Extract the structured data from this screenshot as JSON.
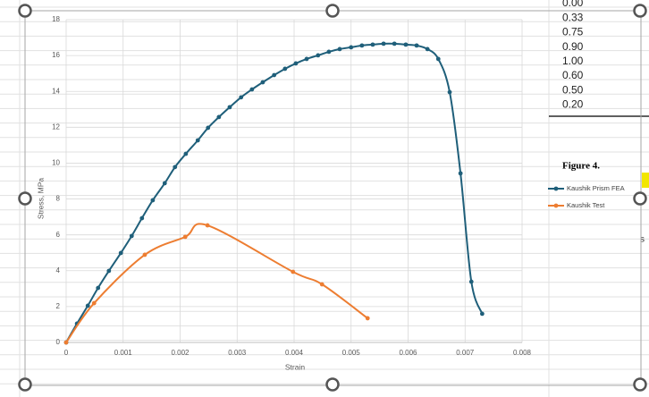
{
  "chart_data": {
    "type": "line",
    "x_label": "Strain",
    "y_label": "Stress, MPa",
    "xlim": [
      0,
      0.008
    ],
    "xticks": [
      0,
      0.001,
      0.002,
      0.003,
      0.004,
      0.005,
      0.006,
      0.007,
      0.008
    ],
    "ylim": [
      0,
      18
    ],
    "yticks": [
      0,
      2,
      4,
      6,
      8,
      10,
      12,
      14,
      16,
      18
    ],
    "grid": true,
    "legend": "right",
    "series": [
      {
        "name": "Kaushik Prism FEA",
        "color": "#1f5f7a",
        "x": [
          0,
          0.00019,
          0.00038,
          0.00056,
          0.00075,
          0.00096,
          0.00115,
          0.00133,
          0.00152,
          0.00173,
          0.00191,
          0.0021,
          0.00231,
          0.00249,
          0.00268,
          0.00287,
          0.00307,
          0.00326,
          0.00345,
          0.00365,
          0.00384,
          0.00403,
          0.00422,
          0.00442,
          0.00461,
          0.0048,
          0.005,
          0.00519,
          0.00538,
          0.00557,
          0.00576,
          0.00596,
          0.00615,
          0.00634,
          0.00653,
          0.00673,
          0.00692,
          0.00711,
          0.0073
        ],
        "values": [
          0,
          1.05,
          2.05,
          3.04,
          3.99,
          4.99,
          5.94,
          6.93,
          7.93,
          8.88,
          9.78,
          10.52,
          11.27,
          11.97,
          12.57,
          13.12,
          13.67,
          14.11,
          14.51,
          14.91,
          15.26,
          15.56,
          15.81,
          16.01,
          16.21,
          16.36,
          16.46,
          16.56,
          16.61,
          16.66,
          16.66,
          16.61,
          16.56,
          16.36,
          15.81,
          13.96,
          9.43,
          3.39,
          1.6
        ]
      },
      {
        "name": "Kaushik Test",
        "color": "#ed7d31",
        "x": [
          0,
          0.00049,
          0.00138,
          0.00209,
          0.00248,
          0.00398,
          0.00449,
          0.00529
        ],
        "values": [
          0,
          2.19,
          4.89,
          5.89,
          6.53,
          3.94,
          3.24,
          1.35
        ]
      }
    ]
  },
  "background": {
    "table_values": [
      "0.00",
      "0.33",
      "0.75",
      "0.90",
      "1.00",
      "0.60",
      "0.50",
      "0.20"
    ],
    "figure_caption": "Figure 4.",
    "side_letter": "s"
  }
}
